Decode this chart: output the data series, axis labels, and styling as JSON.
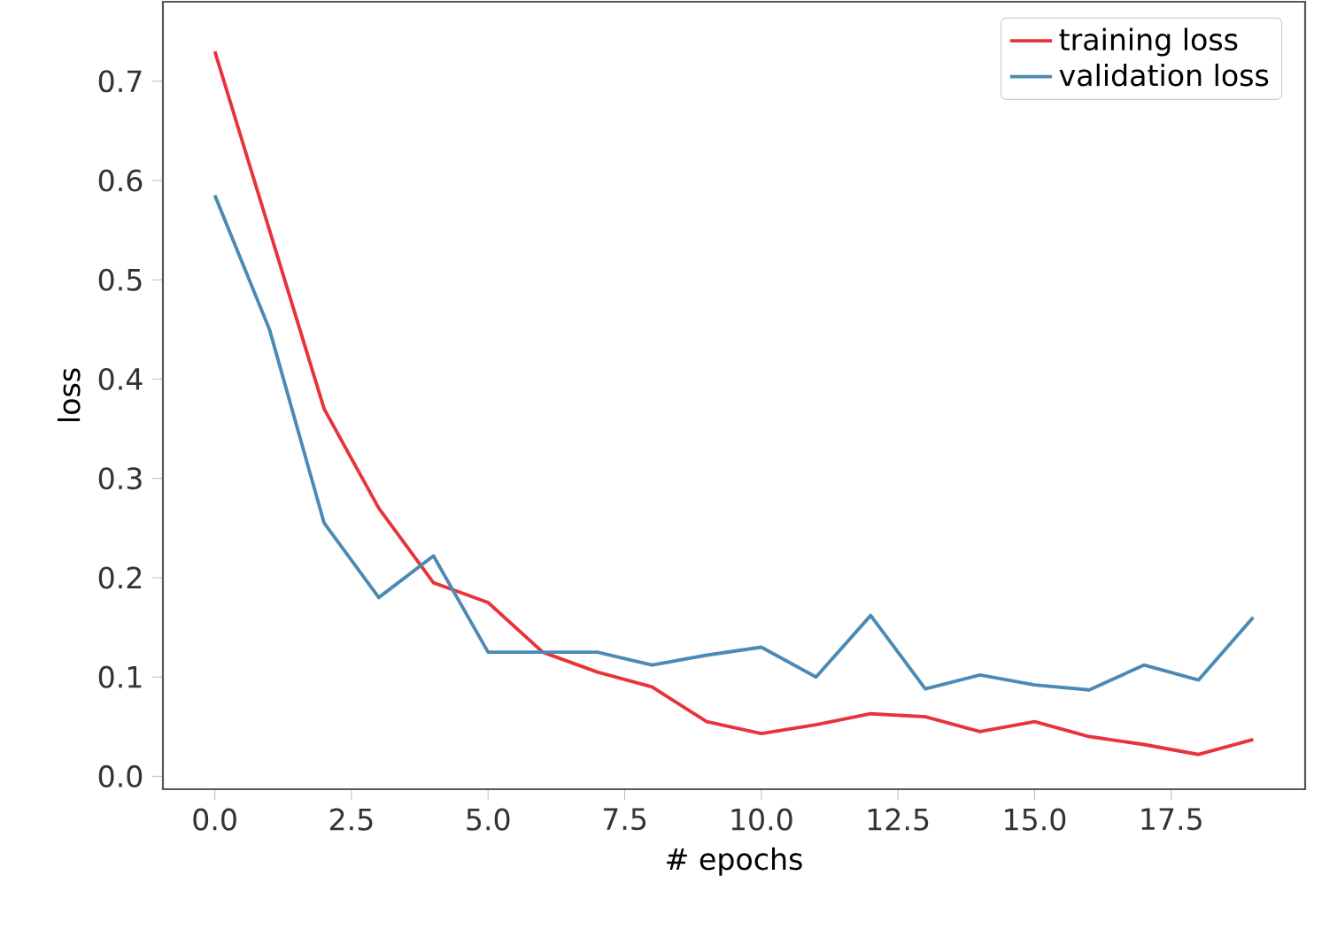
{
  "chart_data": {
    "type": "line",
    "xlabel": "# epochs",
    "ylabel": "loss",
    "x": [
      0,
      1,
      2,
      3,
      4,
      5,
      6,
      7,
      8,
      9,
      10,
      11,
      12,
      13,
      14,
      15,
      16,
      17,
      18,
      19
    ],
    "series": [
      {
        "name": "training loss",
        "color": "#e8333a",
        "values": [
          0.73,
          0.55,
          0.37,
          0.27,
          0.195,
          0.175,
          0.125,
          0.105,
          0.09,
          0.055,
          0.043,
          0.052,
          0.063,
          0.06,
          0.045,
          0.055,
          0.04,
          0.032,
          0.022,
          0.037
        ]
      },
      {
        "name": "validation loss",
        "color": "#4a8ab5",
        "values": [
          0.585,
          0.45,
          0.255,
          0.18,
          0.222,
          0.125,
          0.125,
          0.125,
          0.112,
          0.122,
          0.13,
          0.1,
          0.162,
          0.088,
          0.102,
          0.092,
          0.087,
          0.112,
          0.097,
          0.16
        ]
      }
    ],
    "xlim": [
      -0.95,
      19.95
    ],
    "ylim": [
      -0.013,
      0.78
    ],
    "xticks": [
      {
        "value": 0,
        "label": "0.0"
      },
      2.5,
      {
        "value": 5,
        "label": "5.0"
      },
      7.5,
      {
        "value": 10,
        "label": "10.0"
      },
      12.5,
      {
        "value": 15,
        "label": "15.0"
      },
      17.5
    ],
    "yticks": [
      {
        "value": 0,
        "label": "0.0"
      },
      0.1,
      0.2,
      0.3,
      0.4,
      0.5,
      0.6,
      0.7
    ],
    "legend": "top right",
    "grid": false,
    "marker": "none",
    "line_style": "solid"
  }
}
